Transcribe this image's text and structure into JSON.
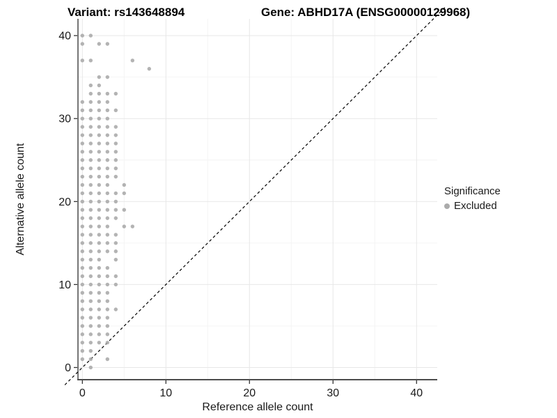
{
  "titles": {
    "variant": "Variant: rs143648894",
    "gene": "Gene: ABHD17A (ENSG00000129968)"
  },
  "legend": {
    "title": "Significance",
    "items": [
      {
        "label": "Excluded",
        "color": "#ababab"
      }
    ]
  },
  "chart_data": {
    "type": "scatter",
    "title": "Variant: rs143648894 / Gene: ABHD17A (ENSG00000129968)",
    "xlabel": "Reference allele count",
    "ylabel": "Alternative allele count",
    "xlim": [
      -0.5,
      42.5
    ],
    "ylim": [
      -1.5,
      42.5
    ],
    "x_ticks": [
      0,
      10,
      20,
      30,
      40
    ],
    "y_ticks": [
      0,
      10,
      20,
      30,
      40
    ],
    "x_minor_ticks": [
      5,
      15,
      25,
      35
    ],
    "y_minor_ticks": [
      5,
      15,
      25,
      35
    ],
    "grid": "major+minor",
    "legend_position": "right",
    "identity_line": {
      "style": "dashed",
      "color": "#000000",
      "from": [
        -2.1,
        -2.1
      ],
      "to": [
        43.5,
        43.5
      ]
    },
    "point_color": "#ababab",
    "series": [
      {
        "name": "Excluded",
        "color": "#ababab",
        "points": [
          [
            0,
            40
          ],
          [
            1,
            40
          ],
          [
            0,
            39
          ],
          [
            2,
            39
          ],
          [
            3,
            39
          ],
          [
            0,
            37
          ],
          [
            1,
            37
          ],
          [
            6,
            37
          ],
          [
            8,
            36
          ],
          [
            2,
            35
          ],
          [
            3,
            35
          ],
          [
            1,
            34
          ],
          [
            2,
            34
          ],
          [
            1,
            33
          ],
          [
            2,
            33
          ],
          [
            3,
            33
          ],
          [
            4,
            33
          ],
          [
            0,
            32
          ],
          [
            1,
            32
          ],
          [
            2,
            32
          ],
          [
            3,
            32
          ],
          [
            0,
            31
          ],
          [
            1,
            31
          ],
          [
            2,
            31
          ],
          [
            3,
            31
          ],
          [
            4,
            31
          ],
          [
            0,
            30
          ],
          [
            1,
            30
          ],
          [
            2,
            30
          ],
          [
            3,
            30
          ],
          [
            0,
            29
          ],
          [
            1,
            29
          ],
          [
            2,
            29
          ],
          [
            3,
            29
          ],
          [
            4,
            29
          ],
          [
            0,
            28
          ],
          [
            1,
            28
          ],
          [
            2,
            28
          ],
          [
            3,
            28
          ],
          [
            4,
            28
          ],
          [
            0,
            27
          ],
          [
            1,
            27
          ],
          [
            2,
            27
          ],
          [
            3,
            27
          ],
          [
            4,
            27
          ],
          [
            0,
            26
          ],
          [
            1,
            26
          ],
          [
            2,
            26
          ],
          [
            3,
            26
          ],
          [
            4,
            26
          ],
          [
            0,
            25
          ],
          [
            1,
            25
          ],
          [
            2,
            25
          ],
          [
            3,
            25
          ],
          [
            4,
            25
          ],
          [
            0,
            24
          ],
          [
            1,
            24
          ],
          [
            2,
            24
          ],
          [
            3,
            24
          ],
          [
            4,
            24
          ],
          [
            0,
            23
          ],
          [
            1,
            23
          ],
          [
            2,
            23
          ],
          [
            3,
            23
          ],
          [
            4,
            23
          ],
          [
            0,
            22
          ],
          [
            1,
            22
          ],
          [
            2,
            22
          ],
          [
            3,
            22
          ],
          [
            5,
            22
          ],
          [
            0,
            21
          ],
          [
            1,
            21
          ],
          [
            2,
            21
          ],
          [
            3,
            21
          ],
          [
            4,
            21
          ],
          [
            5,
            21
          ],
          [
            0,
            20
          ],
          [
            1,
            20
          ],
          [
            2,
            20
          ],
          [
            3,
            20
          ],
          [
            4,
            20
          ],
          [
            0,
            19
          ],
          [
            1,
            19
          ],
          [
            2,
            19
          ],
          [
            3,
            19
          ],
          [
            4,
            19
          ],
          [
            5,
            19
          ],
          [
            0,
            18
          ],
          [
            1,
            18
          ],
          [
            2,
            18
          ],
          [
            3,
            18
          ],
          [
            4,
            18
          ],
          [
            0,
            17
          ],
          [
            1,
            17
          ],
          [
            2,
            17
          ],
          [
            3,
            17
          ],
          [
            5,
            17
          ],
          [
            6,
            17
          ],
          [
            0,
            16
          ],
          [
            1,
            16
          ],
          [
            2,
            16
          ],
          [
            3,
            16
          ],
          [
            4,
            16
          ],
          [
            0,
            15
          ],
          [
            1,
            15
          ],
          [
            2,
            15
          ],
          [
            3,
            15
          ],
          [
            4,
            15
          ],
          [
            0,
            14
          ],
          [
            1,
            14
          ],
          [
            2,
            14
          ],
          [
            3,
            14
          ],
          [
            4,
            14
          ],
          [
            0,
            13
          ],
          [
            1,
            13
          ],
          [
            2,
            13
          ],
          [
            4,
            13
          ],
          [
            0,
            12
          ],
          [
            1,
            12
          ],
          [
            2,
            12
          ],
          [
            3,
            12
          ],
          [
            0,
            11
          ],
          [
            1,
            11
          ],
          [
            2,
            11
          ],
          [
            3,
            11
          ],
          [
            4,
            11
          ],
          [
            0,
            10
          ],
          [
            1,
            10
          ],
          [
            2,
            10
          ],
          [
            3,
            10
          ],
          [
            4,
            10
          ],
          [
            0,
            9
          ],
          [
            1,
            9
          ],
          [
            2,
            9
          ],
          [
            3,
            9
          ],
          [
            0,
            8
          ],
          [
            1,
            8
          ],
          [
            2,
            8
          ],
          [
            3,
            8
          ],
          [
            0,
            7
          ],
          [
            1,
            7
          ],
          [
            2,
            7
          ],
          [
            3,
            7
          ],
          [
            4,
            7
          ],
          [
            0,
            6
          ],
          [
            1,
            6
          ],
          [
            2,
            6
          ],
          [
            3,
            6
          ],
          [
            0,
            5
          ],
          [
            1,
            5
          ],
          [
            2,
            5
          ],
          [
            3,
            5
          ],
          [
            0,
            4
          ],
          [
            1,
            4
          ],
          [
            2,
            4
          ],
          [
            3,
            4
          ],
          [
            0,
            3
          ],
          [
            1,
            3
          ],
          [
            2,
            3
          ],
          [
            3,
            3
          ],
          [
            0,
            2
          ],
          [
            1,
            2
          ],
          [
            0,
            1
          ],
          [
            1,
            1
          ],
          [
            3,
            1
          ],
          [
            1,
            0
          ]
        ]
      }
    ]
  }
}
